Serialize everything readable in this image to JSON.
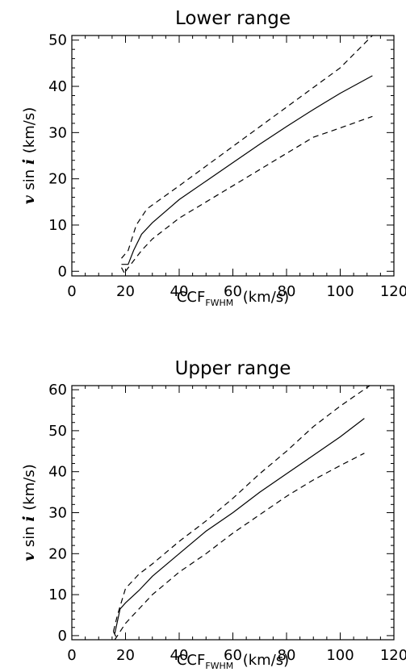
{
  "chart_data": [
    {
      "type": "line",
      "title": "Lower range",
      "xlabel": "CCF",
      "xlabel_sub": "FWHM",
      "xlabel_units": "(km/s)",
      "ylabel": "v sin i (km/s)",
      "xlim": [
        0,
        120
      ],
      "ylim": [
        -1,
        51
      ],
      "xticks": [
        0,
        20,
        40,
        60,
        80,
        100,
        120
      ],
      "yticks": [
        0,
        10,
        20,
        30,
        40,
        50
      ],
      "grid": false,
      "series": [
        {
          "style": "solid",
          "points": [
            [
              18.5,
              1.5
            ],
            [
              21,
              1.5
            ],
            [
              23,
              4.5
            ],
            [
              26,
              8
            ],
            [
              30,
              10.5
            ],
            [
              40,
              15.5
            ],
            [
              50,
              19.5
            ],
            [
              60,
              23.5
            ],
            [
              70,
              27.5
            ],
            [
              80,
              31.3
            ],
            [
              90,
              35
            ],
            [
              100,
              38.5
            ],
            [
              112,
              42.3
            ]
          ]
        },
        {
          "style": "dashed",
          "points": [
            [
              18.5,
              2.8
            ],
            [
              21,
              4.5
            ],
            [
              24,
              10
            ],
            [
              28,
              13.5
            ],
            [
              40,
              18.5
            ],
            [
              60,
              27
            ],
            [
              80,
              35.5
            ],
            [
              100,
              44
            ],
            [
              112,
              51
            ]
          ]
        },
        {
          "style": "dashed",
          "points": [
            [
              20,
              0
            ],
            [
              22,
              1.5
            ],
            [
              26,
              4.5
            ],
            [
              30,
              7
            ],
            [
              40,
              11.5
            ],
            [
              50,
              15
            ],
            [
              60,
              18.5
            ],
            [
              70,
              22
            ],
            [
              80,
              25.5
            ],
            [
              90,
              29
            ],
            [
              100,
              31
            ],
            [
              112,
              33.5
            ]
          ]
        },
        {
          "style": "dashed",
          "points": [
            [
              18.5,
              0.8
            ],
            [
              20,
              -0.8
            ]
          ]
        }
      ]
    },
    {
      "type": "line",
      "title": "Upper range",
      "xlabel": "CCF",
      "xlabel_sub": "FWHM",
      "xlabel_units": "(km/s)",
      "ylabel": "v sin i (km/s)",
      "xlim": [
        0,
        120
      ],
      "ylim": [
        -1,
        61
      ],
      "xticks": [
        0,
        20,
        40,
        60,
        80,
        100,
        120
      ],
      "yticks": [
        0,
        10,
        20,
        30,
        40,
        50,
        60
      ],
      "grid": false,
      "series": [
        {
          "style": "solid",
          "points": [
            [
              16,
              0.5
            ],
            [
              17,
              3.5
            ],
            [
              18,
              6.5
            ],
            [
              20,
              8
            ],
            [
              25,
              11
            ],
            [
              30,
              14.5
            ],
            [
              40,
              20
            ],
            [
              50,
              25.5
            ],
            [
              60,
              30
            ],
            [
              70,
              35
            ],
            [
              80,
              39.5
            ],
            [
              90,
              44
            ],
            [
              100,
              48.5
            ],
            [
              109,
              53
            ]
          ]
        },
        {
          "style": "dashed",
          "points": [
            [
              15.5,
              1
            ],
            [
              17,
              5
            ],
            [
              20,
              11.5
            ],
            [
              25,
              15
            ],
            [
              30,
              17.5
            ],
            [
              40,
              23
            ],
            [
              50,
              28
            ],
            [
              60,
              33.5
            ],
            [
              70,
              39.5
            ],
            [
              80,
              45
            ],
            [
              90,
              51
            ],
            [
              100,
              56
            ],
            [
              111,
              61
            ]
          ]
        },
        {
          "style": "dashed",
          "points": [
            [
              16,
              -1
            ],
            [
              20,
              3
            ],
            [
              25,
              6.5
            ],
            [
              30,
              10
            ],
            [
              40,
              15.5
            ],
            [
              50,
              20
            ],
            [
              60,
              25
            ],
            [
              70,
              29.5
            ],
            [
              80,
              34
            ],
            [
              90,
              38
            ],
            [
              100,
              41.5
            ],
            [
              109,
              44.5
            ]
          ]
        },
        {
          "style": "dashed",
          "points": [
            [
              15.5,
              1
            ],
            [
              17,
              -1
            ]
          ]
        }
      ]
    }
  ]
}
